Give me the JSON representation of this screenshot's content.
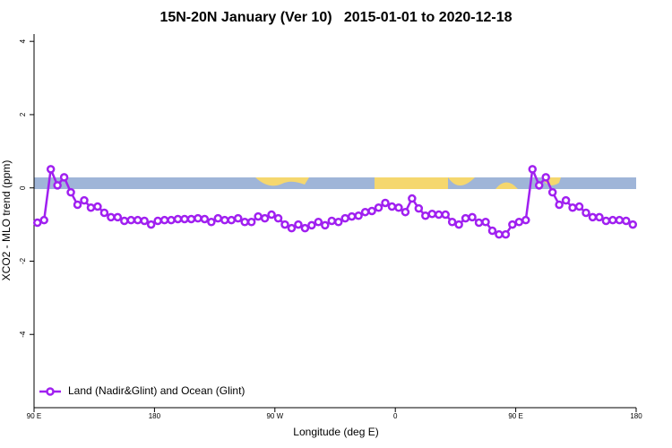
{
  "chart_data": {
    "type": "line",
    "title": "15N-20N January (Ver 10)   2015-01-01 to 2020-12-18",
    "x_label": "Longitude (deg E)",
    "y_label": "XCO2 - MLO trend (ppm)",
    "x": [
      92.5,
      97.5,
      102.5,
      107.5,
      112.5,
      117.5,
      122.5,
      127.5,
      132.5,
      137.5,
      142.5,
      147.5,
      152.5,
      157.5,
      162.5,
      167.5,
      172.5,
      177.5,
      182.5,
      187.5,
      192.5,
      197.5,
      202.5,
      207.5,
      212.5,
      217.5,
      222.5,
      227.5,
      232.5,
      237.5,
      242.5,
      247.5,
      252.5,
      257.5,
      262.5,
      267.5,
      272.5,
      277.5,
      282.5,
      287.5,
      292.5,
      297.5,
      302.5,
      307.5,
      312.5,
      317.5,
      322.5,
      327.5,
      332.5,
      337.5,
      342.5,
      347.5,
      352.5,
      357.5,
      362.5,
      367.5,
      372.5,
      377.5,
      382.5,
      387.5,
      392.5,
      397.5,
      402.5,
      407.5,
      412.5,
      417.5,
      422.5,
      427.5,
      432.5,
      437.5,
      442.5,
      447.5,
      452.5,
      457.5,
      462.5,
      467.5,
      472.5,
      477.5,
      482.5,
      487.5,
      492.5,
      497.5,
      502.5,
      507.5,
      512.5,
      517.5,
      522.5,
      527.5,
      532.5,
      537.5
    ],
    "series": [
      {
        "name": "Land (Nadir&Glint) and Ocean (Glint)",
        "color": "#a020f0",
        "values": [
          -0.95,
          -0.88,
          0.51,
          0.07,
          0.29,
          -0.12,
          -0.46,
          -0.34,
          -0.54,
          -0.51,
          -0.68,
          -0.8,
          -0.8,
          -0.9,
          -0.88,
          -0.88,
          -0.9,
          -1.0,
          -0.9,
          -0.88,
          -0.88,
          -0.85,
          -0.85,
          -0.85,
          -0.83,
          -0.85,
          -0.93,
          -0.83,
          -0.88,
          -0.88,
          -0.83,
          -0.93,
          -0.93,
          -0.78,
          -0.83,
          -0.73,
          -0.83,
          -1.0,
          -1.1,
          -1.0,
          -1.1,
          -1.02,
          -0.93,
          -1.02,
          -0.9,
          -0.93,
          -0.83,
          -0.78,
          -0.76,
          -0.66,
          -0.63,
          -0.54,
          -0.41,
          -0.51,
          -0.54,
          -0.66,
          -0.29,
          -0.56,
          -0.76,
          -0.71,
          -0.73,
          -0.73,
          -0.93,
          -1.0,
          -0.83,
          -0.8,
          -0.95,
          -0.93,
          -1.17,
          -1.27,
          -1.27,
          -1.0,
          -0.93,
          -0.88,
          0.51,
          0.07,
          0.29,
          -0.12,
          -0.46,
          -0.34,
          -0.54,
          -0.51,
          -0.68,
          -0.8,
          -0.8,
          -0.9,
          -0.88,
          -0.88,
          -0.9,
          -1.0
        ]
      }
    ],
    "xlim": [
      90,
      540
    ],
    "xticks": [
      {
        "value": 90,
        "label": "90 E"
      },
      180,
      {
        "value": 270,
        "label": "90 W"
      },
      {
        "value": 360,
        "label": "0"
      },
      {
        "value": 450,
        "label": "90 E"
      },
      {
        "value": 540,
        "label": "180"
      }
    ],
    "ylim": [
      -6,
      4.2
    ],
    "yticks": [
      -4,
      -2,
      0,
      2,
      4
    ],
    "legend": "bottom-left"
  }
}
